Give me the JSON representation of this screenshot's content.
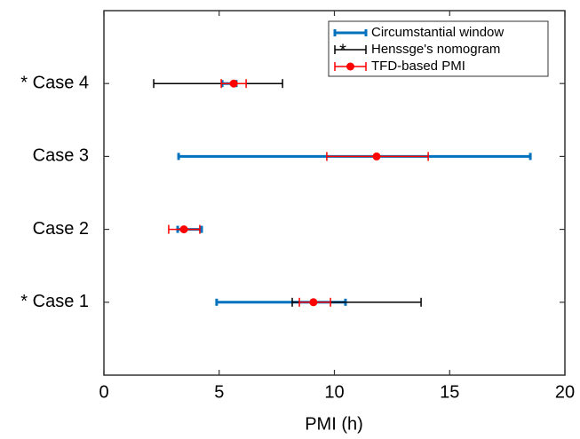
{
  "chart_data": {
    "type": "interval",
    "xlabel": "PMI (h)",
    "xlim": [
      0,
      20
    ],
    "xticks": [
      0,
      5,
      10,
      15,
      20
    ],
    "categories": [
      "* Case 1",
      "Case 2",
      "Case 3",
      "* Case 4"
    ],
    "legend_position": "upper right",
    "legend_asterisk": "*",
    "series": [
      {
        "name": "Circumstantial window",
        "color": "#0072bd",
        "low": [
          4.89,
          3.2,
          3.24,
          5.13
        ],
        "high": [
          10.48,
          4.24,
          18.5,
          5.74
        ]
      },
      {
        "name": "Henssge's nomogram",
        "color": "#000000",
        "low": [
          8.17,
          null,
          null,
          2.16
        ],
        "high": [
          13.76,
          null,
          null,
          7.75
        ]
      },
      {
        "name": "TFD-based PMI",
        "color": "#ff0000",
        "values": [
          9.09,
          3.47,
          11.83,
          5.63
        ],
        "low": [
          8.48,
          2.81,
          9.67,
          5.09
        ],
        "high": [
          9.83,
          4.16,
          14.07,
          6.17
        ]
      }
    ]
  }
}
